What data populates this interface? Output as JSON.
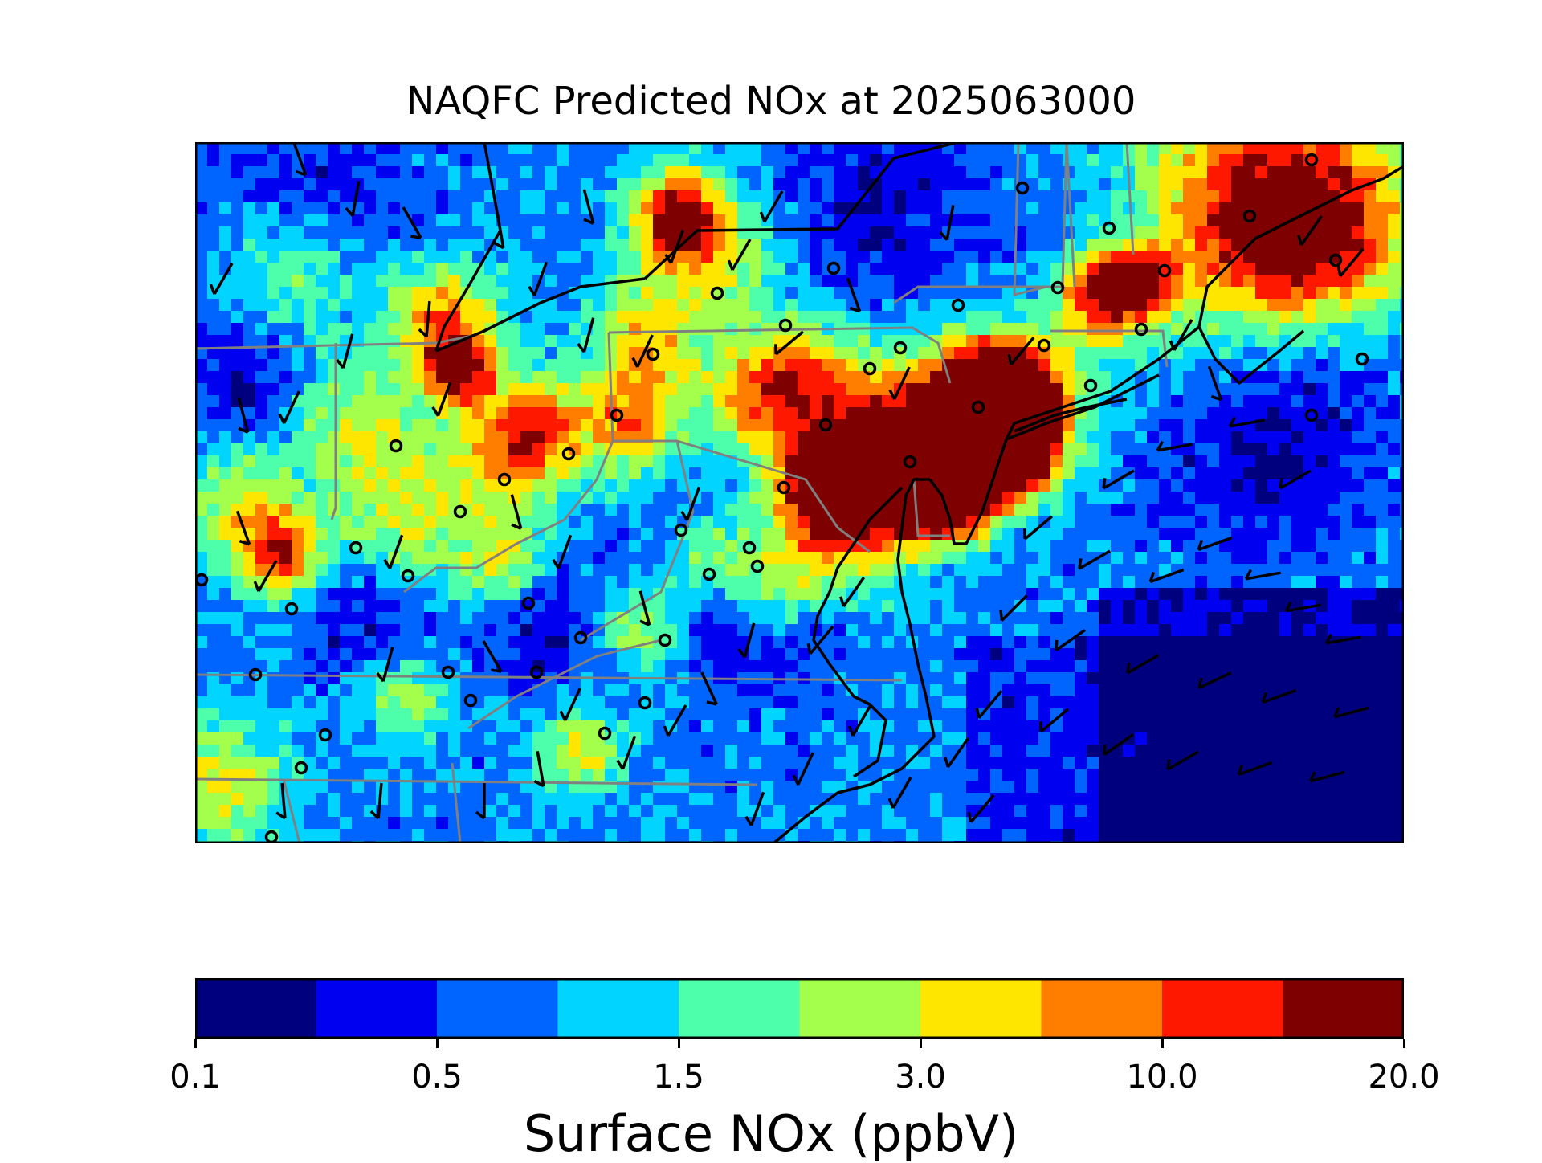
{
  "title": "NAQFC Predicted NOx at 2025063000",
  "colorbar": {
    "label": "Surface NOx (ppbV)",
    "colors": [
      "#00007f",
      "#0000f0",
      "#0064ff",
      "#00d4ff",
      "#4dffaa",
      "#a4ff4d",
      "#ffe600",
      "#ff7e00",
      "#ff1800",
      "#7f0000"
    ],
    "tick_labels": [
      "0.1",
      "0.5",
      "1.5",
      "3.0",
      "10.0",
      "20.0"
    ],
    "tick_bin_index": [
      0,
      2,
      4,
      6,
      8,
      10
    ]
  },
  "map": {
    "region": "Northeastern United States",
    "overlays": [
      "state-boundaries",
      "coastlines",
      "wind-barbs",
      "monitor-sites"
    ],
    "colors": {
      "state_border": "#808080",
      "coastline": "#000000",
      "frame": "#000000"
    }
  }
}
